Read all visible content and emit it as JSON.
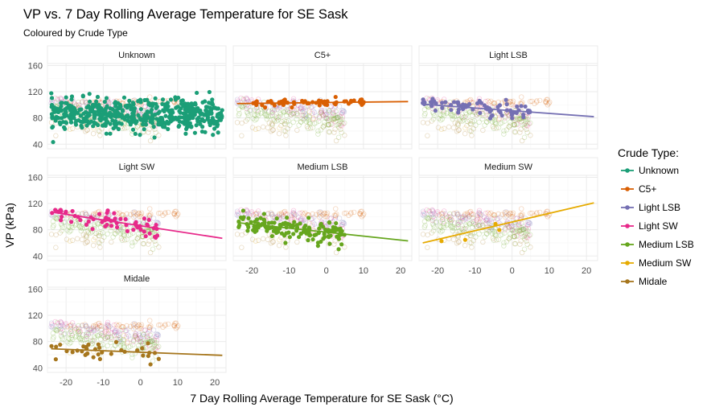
{
  "chart_data": {
    "type": "scatter",
    "title": "VP vs. 7 Day Rolling Average Temperature for SE Sask",
    "subtitle": "Coloured by Crude Type",
    "xlabel": "7 Day Rolling Average Temperature for SE Sask (°C)",
    "ylabel": "VP (kPa)",
    "xlim": [
      -25,
      23
    ],
    "ylim": [
      33,
      163
    ],
    "xticks": [
      -20,
      -10,
      0,
      10,
      20
    ],
    "yticks": [
      40,
      80,
      120,
      160
    ],
    "grid": true,
    "legend": {
      "title": "Crude Type:",
      "position": "right"
    },
    "panels": [
      {
        "name": "Unknown",
        "color": "#1b9e77",
        "trend": null,
        "x_range": [
          -24,
          22
        ],
        "y_center": 85,
        "y_spread": 12,
        "n_points": 520
      },
      {
        "name": "C5+",
        "color": "#d95f02",
        "trend": [
          [
            -24,
            102
          ],
          [
            22,
            105
          ]
        ],
        "x_range": [
          -20,
          11
        ],
        "y_center": 104,
        "y_spread": 3,
        "n_points": 60
      },
      {
        "name": "Light LSB",
        "color": "#7570b3",
        "trend": [
          [
            -24,
            101
          ],
          [
            22,
            82
          ]
        ],
        "x_range": [
          -24,
          5
        ],
        "y_center": 95,
        "y_spread": 7,
        "n_points": 70
      },
      {
        "name": "Light SW",
        "color": "#e7298a",
        "trend": [
          [
            -24,
            107
          ],
          [
            22,
            67
          ]
        ],
        "x_range": [
          -24,
          5
        ],
        "y_center": 95,
        "y_spread": 9,
        "n_points": 60
      },
      {
        "name": "Medium LSB",
        "color": "#66a61e",
        "trend": [
          [
            -24,
            91
          ],
          [
            22,
            63
          ]
        ],
        "x_range": [
          -24,
          5
        ],
        "y_center": 81,
        "y_spread": 9,
        "n_points": 140
      },
      {
        "name": "Medium SW",
        "color": "#e6ab02",
        "trend": [
          [
            -24,
            60
          ],
          [
            22,
            121
          ]
        ],
        "x_range": [
          -24,
          2
        ],
        "y_center": 70,
        "y_spread": 6,
        "n_points": 4
      },
      {
        "name": "Midale",
        "color": "#a6761d",
        "trend": [
          [
            -24,
            69
          ],
          [
            22,
            59
          ]
        ],
        "x_range": [
          -24,
          5
        ],
        "y_center": 66,
        "y_spread": 9,
        "n_points": 35
      }
    ]
  }
}
